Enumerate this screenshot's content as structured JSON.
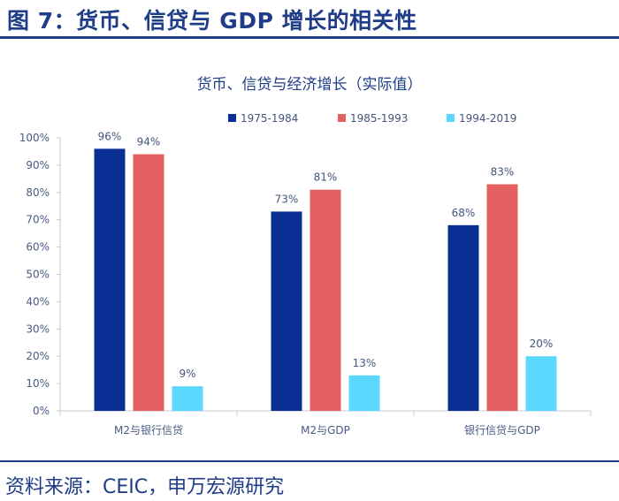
{
  "figure": {
    "title": "图 7：货币、信贷与 GDP 增长的相关性",
    "source": "资料来源：CEIC，申万宏源研究"
  },
  "colors": {
    "accent": "#1f3c88",
    "series_1975_1984": "#0a2f94",
    "series_1985_1993": "#e56060",
    "series_1994_2019": "#5bd8ff",
    "axis_text": "#4a5a86",
    "label_text": "#44547e"
  },
  "chart_data": {
    "type": "bar",
    "title": "货币、信贷与经济增长（实际值）",
    "categories": [
      "M2与银行信贷",
      "M2与GDP",
      "银行信贷与GDP"
    ],
    "series": [
      {
        "name": "1975-1984",
        "values": [
          96,
          73,
          68
        ],
        "labels": [
          "96%",
          "73%",
          "68%"
        ]
      },
      {
        "name": "1985-1993",
        "values": [
          94,
          81,
          83
        ],
        "labels": [
          "94%",
          "81%",
          "83%"
        ]
      },
      {
        "name": "1994-2019",
        "values": [
          9,
          13,
          20
        ],
        "labels": [
          "9%",
          "13%",
          "20%"
        ]
      }
    ],
    "ylim": [
      0,
      100
    ],
    "yticks": [
      0,
      10,
      20,
      30,
      40,
      50,
      60,
      70,
      80,
      90,
      100
    ],
    "ytick_labels": [
      "0%",
      "10%",
      "20%",
      "30%",
      "40%",
      "50%",
      "60%",
      "70%",
      "80%",
      "90%",
      "100%"
    ],
    "xlabel": "",
    "ylabel": "",
    "legend": "top",
    "grid": false
  }
}
